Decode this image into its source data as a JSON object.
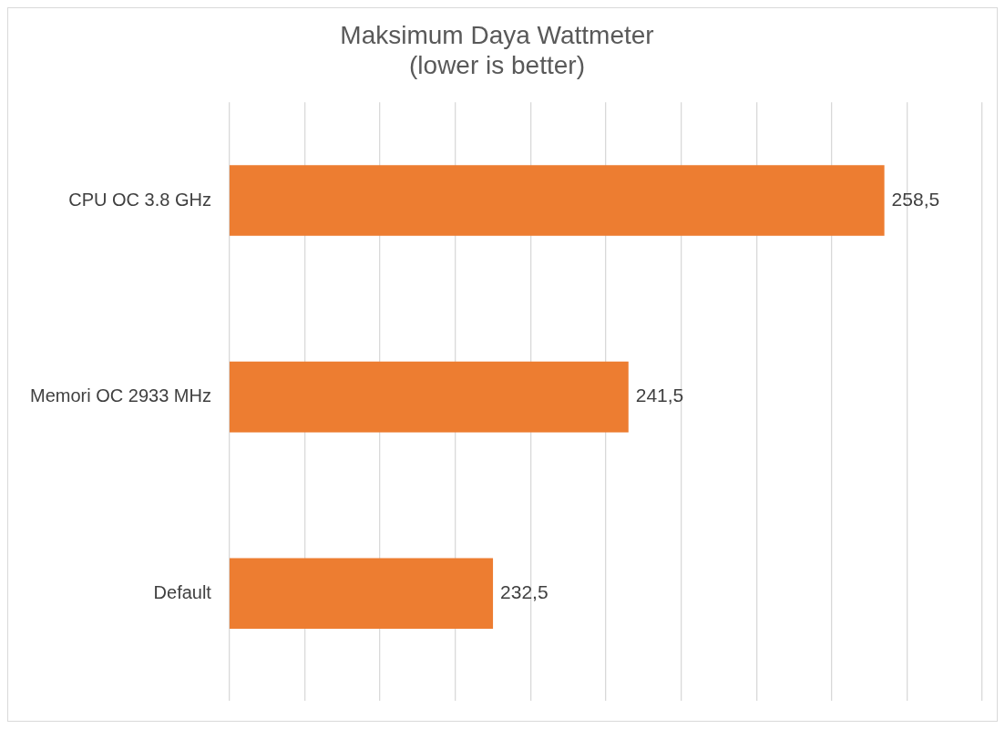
{
  "chart_data": {
    "type": "bar",
    "orientation": "horizontal",
    "title": [
      "Maksimum Daya Wattmeter",
      "(lower is better)"
    ],
    "categories": [
      "CPU OC 3.8 GHz",
      "Memori OC 2933 MHz",
      "Default"
    ],
    "values": [
      258.5,
      241.5,
      232.5
    ],
    "value_labels": [
      "258,5",
      "241,5",
      "232,5"
    ],
    "color": "#ed7d31",
    "xlim": [
      215,
      265
    ],
    "xticks": [
      {
        "value": 215,
        "label": null
      },
      {
        "value": 220,
        "label": null
      },
      {
        "value": 225,
        "label": null
      },
      {
        "value": 230,
        "label": null
      },
      {
        "value": 235,
        "label": null
      },
      {
        "value": 240,
        "label": null
      },
      {
        "value": 245,
        "label": null
      },
      {
        "value": 250,
        "label": null
      },
      {
        "value": 255,
        "label": null
      },
      {
        "value": 260,
        "label": null
      },
      {
        "value": 265,
        "label": null
      }
    ],
    "grid": "x",
    "tick_labels": "y",
    "legend": false
  }
}
